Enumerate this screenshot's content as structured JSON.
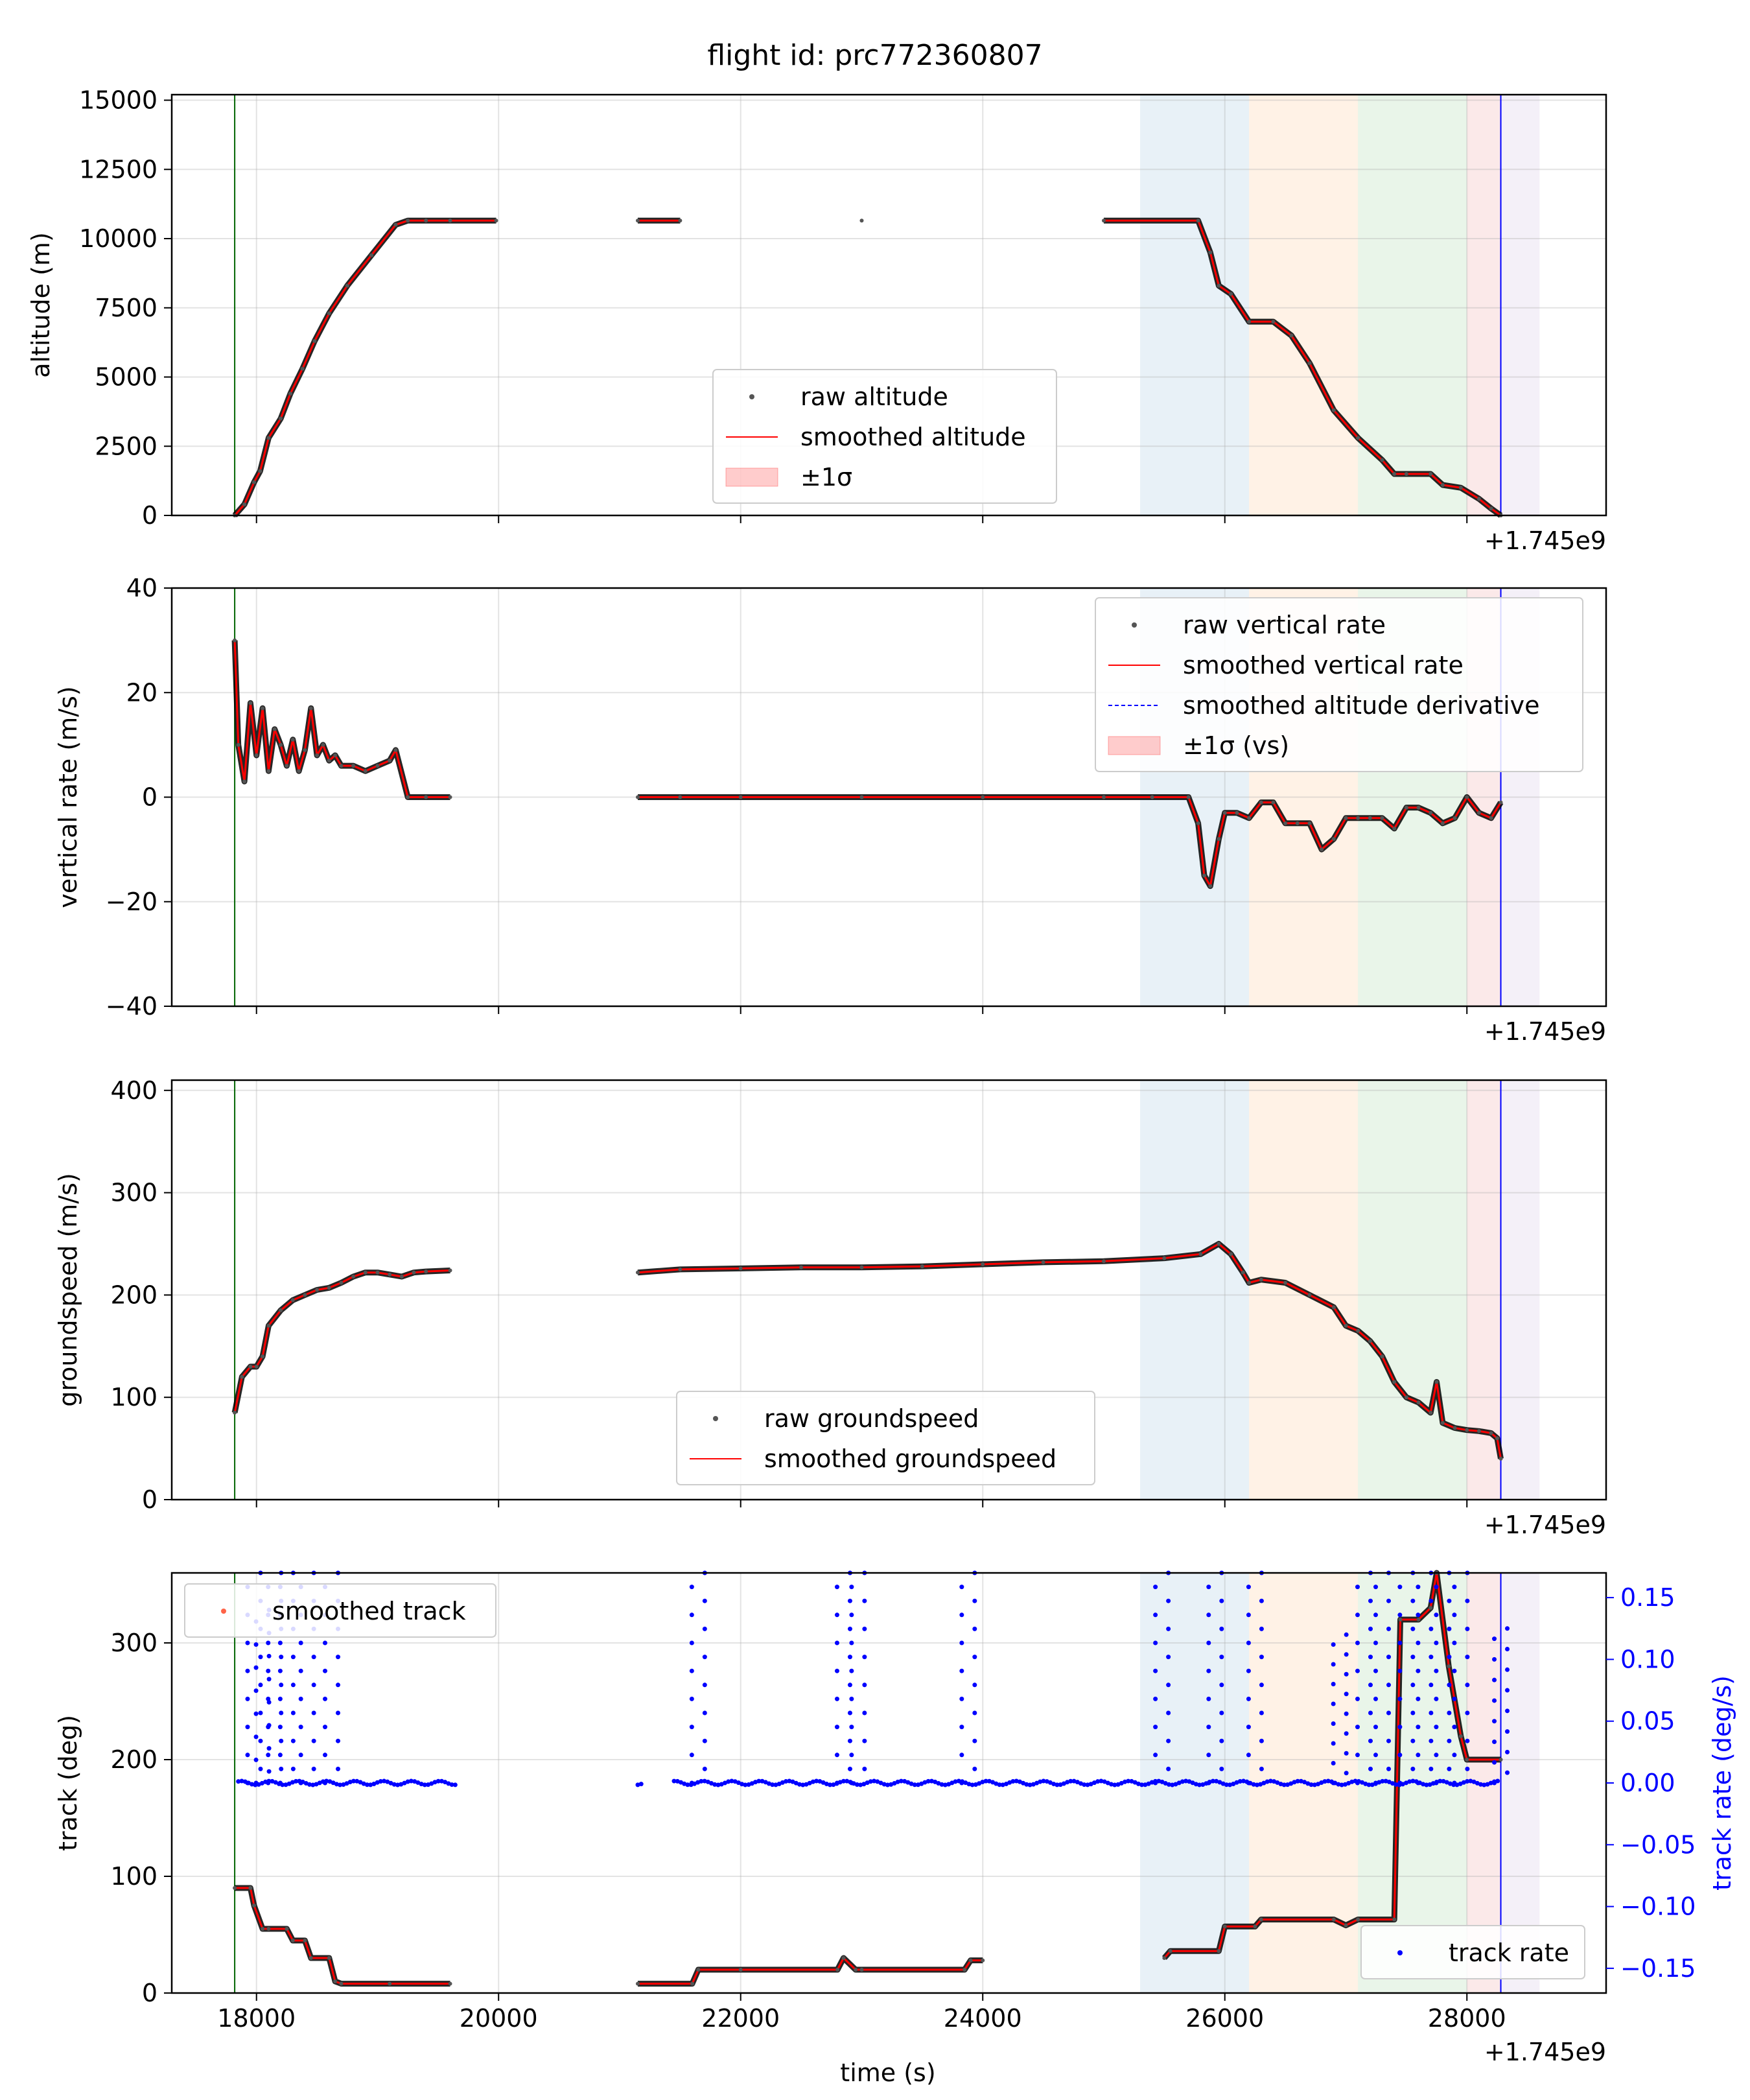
{
  "title": "flight id: prc772360807",
  "offset_label": "+1.745e9",
  "xlabel": "time (s)",
  "xlim": [
    17300,
    29150
  ],
  "xticks": [
    18000,
    20000,
    22000,
    24000,
    26000,
    28000
  ],
  "xtick_labels": [
    "18000",
    "20000",
    "22000",
    "24000",
    "26000",
    "28000"
  ],
  "phases": [
    {
      "name": "phase-1",
      "start": 25300,
      "end": 26200,
      "color": "#1f77b4"
    },
    {
      "name": "phase-2",
      "start": 26200,
      "end": 27100,
      "color": "#ff7f0e"
    },
    {
      "name": "phase-3",
      "start": 27100,
      "end": 28000,
      "color": "#2ca02c"
    },
    {
      "name": "phase-4",
      "start": 28000,
      "end": 28280,
      "color": "#d62728"
    },
    {
      "name": "phase-5",
      "start": 28280,
      "end": 28600,
      "color": "#9467bd"
    }
  ],
  "markers": {
    "takeoff": {
      "t": 17820,
      "color": "#006400"
    },
    "landing": {
      "t": 28280,
      "color": "#0000ff"
    }
  },
  "chart_data": [
    {
      "type": "line",
      "name": "altitude",
      "ylabel": "altitude (m)",
      "ylim": [
        0,
        15200
      ],
      "yticks": [
        0,
        2500,
        5000,
        7500,
        10000,
        12500,
        15000
      ],
      "legend": [
        "raw altitude",
        "smoothed altitude",
        "±1σ"
      ],
      "legend_position": "lower-center",
      "series": [
        {
          "name": "smoothed altitude",
          "x": [
            17820,
            17900,
            17980,
            18030,
            18100,
            18200,
            18280,
            18380,
            18480,
            18600,
            18750,
            18950,
            19150,
            19250,
            19400,
            19600,
            19980,
            21150,
            21500,
            23000,
            25000,
            25780,
            25880,
            25950,
            26050,
            26200,
            26400,
            26550,
            26700,
            26900,
            27100,
            27300,
            27400,
            27500,
            27700,
            27800,
            27950,
            28100,
            28200,
            28280
          ],
          "y": [
            0,
            400,
            1200,
            1600,
            2800,
            3500,
            4400,
            5300,
            6300,
            7300,
            8300,
            9400,
            10500,
            10650,
            10650,
            10650,
            10650,
            10650,
            10650,
            10650,
            10650,
            10650,
            9500,
            8300,
            8000,
            7000,
            7000,
            6500,
            5500,
            3800,
            2800,
            2000,
            1500,
            1500,
            1500,
            1100,
            1000,
            600,
            250,
            0
          ]
        }
      ]
    },
    {
      "type": "line",
      "name": "vertical-rate",
      "ylabel": "vertical rate (m/s)",
      "ylim": [
        -40,
        40
      ],
      "yticks": [
        -40,
        -20,
        0,
        20,
        40
      ],
      "legend": [
        "raw vertical rate",
        "smoothed vertical rate",
        "smoothed altitude derivative",
        "±1σ (vs)"
      ],
      "legend_position": "upper-right",
      "series": [
        {
          "name": "smoothed vertical rate",
          "x": [
            17820,
            17850,
            17900,
            17950,
            18000,
            18050,
            18100,
            18150,
            18200,
            18250,
            18300,
            18350,
            18400,
            18450,
            18500,
            18550,
            18600,
            18650,
            18700,
            18800,
            18900,
            19000,
            19100,
            19150,
            19250,
            19400,
            19600,
            21150,
            21500,
            22000,
            23000,
            24000,
            25000,
            25400,
            25700,
            25780,
            25830,
            25880,
            25950,
            26000,
            26100,
            26200,
            26300,
            26400,
            26500,
            26600,
            26700,
            26800,
            26900,
            27000,
            27100,
            27200,
            27300,
            27400,
            27500,
            27600,
            27700,
            27800,
            27900,
            28000,
            28100,
            28200,
            28280
          ],
          "y": [
            30,
            10,
            3,
            18,
            8,
            17,
            5,
            13,
            10,
            6,
            11,
            5,
            9,
            17,
            8,
            10,
            7,
            8,
            6,
            6,
            5,
            6,
            7,
            9,
            0,
            0,
            0,
            0,
            0,
            0,
            0,
            0,
            0,
            0,
            0,
            -5,
            -15,
            -17,
            -8,
            -3,
            -3,
            -4,
            -1,
            -1,
            -5,
            -5,
            -5,
            -10,
            -8,
            -4,
            -4,
            -4,
            -4,
            -6,
            -2,
            -2,
            -3,
            -5,
            -4,
            0,
            -3,
            -4,
            -1
          ]
        }
      ]
    },
    {
      "type": "line",
      "name": "groundspeed",
      "ylabel": "groundspeed (m/s)",
      "ylim": [
        0,
        410
      ],
      "yticks": [
        0,
        100,
        200,
        300,
        400
      ],
      "legend": [
        "raw groundspeed",
        "smoothed groundspeed"
      ],
      "legend_position": "lower-center",
      "series": [
        {
          "name": "smoothed groundspeed",
          "x": [
            17820,
            17880,
            17950,
            18000,
            18050,
            18100,
            18200,
            18300,
            18400,
            18500,
            18600,
            18700,
            18800,
            18900,
            19000,
            19100,
            19200,
            19300,
            19400,
            19600,
            21150,
            21500,
            22000,
            22500,
            23000,
            23500,
            24000,
            24500,
            25000,
            25500,
            25800,
            25950,
            26050,
            26150,
            26200,
            26300,
            26500,
            26700,
            26900,
            27000,
            27100,
            27200,
            27300,
            27400,
            27500,
            27600,
            27700,
            27750,
            27800,
            27900,
            28000,
            28100,
            28200,
            28250,
            28280
          ],
          "y": [
            85,
            120,
            130,
            130,
            140,
            170,
            185,
            195,
            200,
            205,
            207,
            212,
            218,
            222,
            222,
            220,
            218,
            222,
            223,
            224,
            222,
            225,
            226,
            227,
            227,
            228,
            230,
            232,
            233,
            236,
            240,
            250,
            240,
            222,
            212,
            215,
            212,
            200,
            188,
            170,
            165,
            155,
            140,
            115,
            100,
            95,
            85,
            115,
            75,
            70,
            68,
            67,
            65,
            60,
            40
          ]
        }
      ]
    },
    {
      "type": "line",
      "name": "track",
      "ylabel": "track (deg)",
      "ylabel_right": "track rate (deg/s)",
      "ylim": [
        0,
        360
      ],
      "yticks": [
        0,
        100,
        200,
        300
      ],
      "ylim_right": [
        -0.17,
        0.17
      ],
      "yticks_right": [
        -0.15,
        -0.1,
        -0.05,
        0.0,
        0.05,
        0.1,
        0.15
      ],
      "ytick_labels_right": [
        "−0.15",
        "−0.10",
        "−0.05",
        "0.00",
        "0.05",
        "0.10",
        "0.15"
      ],
      "legend": [
        "smoothed track",
        "track rate"
      ],
      "legend_position": "upper-left / lower-right",
      "series": [
        {
          "name": "smoothed track",
          "x": [
            17820,
            17950,
            17980,
            18050,
            18100,
            18250,
            18300,
            18400,
            18450,
            18600,
            18650,
            18700,
            19100,
            19600,
            21150,
            21600,
            21650,
            22000,
            22800,
            22850,
            22950,
            23000,
            23850,
            23900,
            24000,
            25500,
            25550,
            25950,
            26000,
            26250,
            26300,
            26900,
            27000,
            27100,
            27400,
            27450,
            27600,
            27700,
            27750,
            27850,
            27950,
            28000,
            28280
          ],
          "y": [
            90,
            90,
            75,
            55,
            55,
            55,
            45,
            45,
            30,
            30,
            10,
            8,
            8,
            8,
            8,
            8,
            20,
            20,
            20,
            30,
            20,
            20,
            20,
            28,
            28,
            30,
            36,
            36,
            57,
            57,
            63,
            63,
            58,
            63,
            63,
            320,
            320,
            330,
            360,
            280,
            220,
            200,
            200
          ]
        },
        {
          "name": "track rate",
          "baseline": 0.0,
          "spikes": [
            {
              "t": 17980,
              "peak": 0.17
            },
            {
              "t": 18050,
              "peak": 0.14
            },
            {
              "t": 18150,
              "peak": 0.17
            },
            {
              "t": 18250,
              "peak": 0.17
            },
            {
              "t": 18420,
              "peak": 0.17
            },
            {
              "t": 18620,
              "peak": 0.17
            },
            {
              "t": 21650,
              "peak": 0.17
            },
            {
              "t": 22850,
              "peak": 0.17
            },
            {
              "t": 22970,
              "peak": 0.17
            },
            {
              "t": 23880,
              "peak": 0.17
            },
            {
              "t": 25480,
              "peak": 0.17
            },
            {
              "t": 25920,
              "peak": 0.17
            },
            {
              "t": 26250,
              "peak": 0.17
            },
            {
              "t": 26950,
              "peak": 0.12
            },
            {
              "t": 27150,
              "peak": 0.17
            },
            {
              "t": 27300,
              "peak": 0.17
            },
            {
              "t": 27500,
              "peak": 0.17
            },
            {
              "t": 27650,
              "peak": 0.17
            },
            {
              "t": 27800,
              "peak": 0.17
            },
            {
              "t": 27950,
              "peak": 0.17
            },
            {
              "t": 28280,
              "peak": 0.125
            }
          ]
        }
      ]
    }
  ]
}
